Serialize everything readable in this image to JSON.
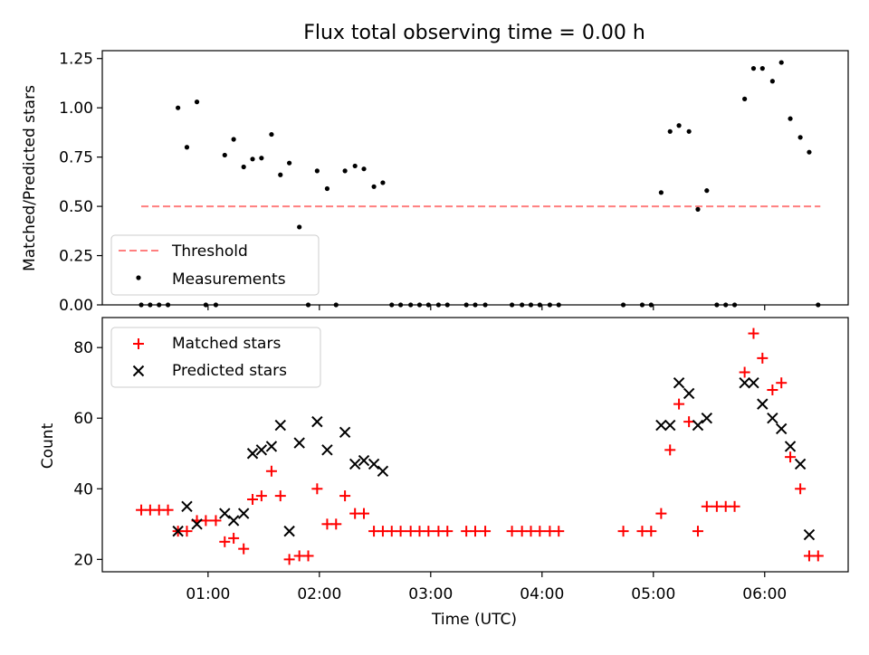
{
  "title": "Flux total observing time = 0.00 h",
  "chart_data": [
    {
      "type": "scatter",
      "ylabel": "Matched/Predicted stars",
      "xlabel": "",
      "xlim": [
        0.05,
        6.75
      ],
      "ylim": [
        0,
        1.29
      ],
      "yticks": [
        0,
        0.25,
        0.5,
        0.75,
        1.0,
        1.25
      ],
      "ytick_labels": [
        "0.00",
        "0.25",
        "0.50",
        "0.75",
        "1.00",
        "1.25"
      ],
      "xticks": [
        1,
        2,
        3,
        4,
        5,
        6
      ],
      "legend": {
        "location": "lower-left",
        "entries": [
          "Threshold",
          "Measurements"
        ]
      },
      "threshold": {
        "name": "Threshold",
        "value": 0.5,
        "x_range": [
          0.4,
          6.5
        ],
        "color": "#ff7f7f"
      },
      "measurements": {
        "name": "Measurements",
        "color": "#000000",
        "points": [
          [
            0.4,
            0
          ],
          [
            0.48,
            0
          ],
          [
            0.56,
            0
          ],
          [
            0.64,
            0
          ],
          [
            0.73,
            1.0
          ],
          [
            0.81,
            0.8
          ],
          [
            0.9,
            1.03
          ],
          [
            0.98,
            0
          ],
          [
            1.07,
            0
          ],
          [
            1.15,
            0.76
          ],
          [
            1.23,
            0.84
          ],
          [
            1.32,
            0.7
          ],
          [
            1.4,
            0.74
          ],
          [
            1.48,
            0.745
          ],
          [
            1.57,
            0.865
          ],
          [
            1.65,
            0.66
          ],
          [
            1.73,
            0.72
          ],
          [
            1.82,
            0.395
          ],
          [
            1.9,
            0
          ],
          [
            1.98,
            0.68
          ],
          [
            2.07,
            0.59
          ],
          [
            2.15,
            0
          ],
          [
            2.23,
            0.68
          ],
          [
            2.32,
            0.705
          ],
          [
            2.4,
            0.69
          ],
          [
            2.49,
            0.6
          ],
          [
            2.57,
            0.62
          ],
          [
            2.65,
            0
          ],
          [
            2.73,
            0
          ],
          [
            2.82,
            0
          ],
          [
            2.9,
            0
          ],
          [
            2.98,
            0
          ],
          [
            3.07,
            0
          ],
          [
            3.15,
            0
          ],
          [
            3.32,
            0
          ],
          [
            3.4,
            0
          ],
          [
            3.49,
            0
          ],
          [
            3.73,
            0
          ],
          [
            3.82,
            0
          ],
          [
            3.9,
            0
          ],
          [
            3.98,
            0
          ],
          [
            4.07,
            0
          ],
          [
            4.15,
            0
          ],
          [
            4.73,
            0
          ],
          [
            4.9,
            0
          ],
          [
            4.98,
            0
          ],
          [
            5.07,
            0.57
          ],
          [
            5.15,
            0.88
          ],
          [
            5.23,
            0.91
          ],
          [
            5.32,
            0.88
          ],
          [
            5.4,
            0.485
          ],
          [
            5.48,
            0.58
          ],
          [
            5.57,
            0
          ],
          [
            5.65,
            0
          ],
          [
            5.73,
            0
          ],
          [
            5.82,
            1.045
          ],
          [
            5.9,
            1.2
          ],
          [
            5.98,
            1.2
          ],
          [
            6.07,
            1.135
          ],
          [
            6.15,
            1.23
          ],
          [
            6.23,
            0.945
          ],
          [
            6.32,
            0.85
          ],
          [
            6.4,
            0.775
          ],
          [
            6.48,
            0
          ]
        ]
      }
    },
    {
      "type": "scatter",
      "ylabel": "Count",
      "xlabel": "Time (UTC)",
      "xlim": [
        0.05,
        6.75
      ],
      "ylim": [
        16.5,
        88.5
      ],
      "yticks": [
        20,
        40,
        60,
        80
      ],
      "ytick_labels": [
        "20",
        "40",
        "60",
        "80"
      ],
      "xticks": [
        1,
        2,
        3,
        4,
        5,
        6
      ],
      "xtick_labels": [
        "01:00",
        "02:00",
        "03:00",
        "04:00",
        "05:00",
        "06:00"
      ],
      "legend": {
        "location": "top-left",
        "entries": [
          "Matched stars",
          "Predicted stars"
        ]
      },
      "series": [
        {
          "name": "Matched stars",
          "marker": "plus",
          "color": "#ff0000",
          "points": [
            [
              0.4,
              34
            ],
            [
              0.48,
              34
            ],
            [
              0.56,
              34
            ],
            [
              0.64,
              34
            ],
            [
              0.73,
              28
            ],
            [
              0.81,
              28
            ],
            [
              0.9,
              31
            ],
            [
              0.98,
              31
            ],
            [
              1.07,
              31
            ],
            [
              1.15,
              25
            ],
            [
              1.23,
              26
            ],
            [
              1.32,
              23
            ],
            [
              1.4,
              37
            ],
            [
              1.48,
              38
            ],
            [
              1.57,
              45
            ],
            [
              1.65,
              38
            ],
            [
              1.73,
              20
            ],
            [
              1.82,
              21
            ],
            [
              1.9,
              21
            ],
            [
              1.98,
              40
            ],
            [
              2.07,
              30
            ],
            [
              2.15,
              30
            ],
            [
              2.23,
              38
            ],
            [
              2.32,
              33
            ],
            [
              2.4,
              33
            ],
            [
              2.49,
              28
            ],
            [
              2.57,
              28
            ],
            [
              2.65,
              28
            ],
            [
              2.73,
              28
            ],
            [
              2.82,
              28
            ],
            [
              2.9,
              28
            ],
            [
              2.98,
              28
            ],
            [
              3.07,
              28
            ],
            [
              3.15,
              28
            ],
            [
              3.32,
              28
            ],
            [
              3.4,
              28
            ],
            [
              3.49,
              28
            ],
            [
              3.73,
              28
            ],
            [
              3.82,
              28
            ],
            [
              3.9,
              28
            ],
            [
              3.98,
              28
            ],
            [
              4.07,
              28
            ],
            [
              4.15,
              28
            ],
            [
              4.73,
              28
            ],
            [
              4.9,
              28
            ],
            [
              4.98,
              28
            ],
            [
              5.07,
              33
            ],
            [
              5.15,
              51
            ],
            [
              5.23,
              64
            ],
            [
              5.32,
              59
            ],
            [
              5.4,
              28
            ],
            [
              5.48,
              35
            ],
            [
              5.57,
              35
            ],
            [
              5.65,
              35
            ],
            [
              5.73,
              35
            ],
            [
              5.82,
              73
            ],
            [
              5.9,
              84
            ],
            [
              5.98,
              77
            ],
            [
              6.07,
              68
            ],
            [
              6.15,
              70
            ],
            [
              6.23,
              49
            ],
            [
              6.32,
              40
            ],
            [
              6.4,
              21
            ],
            [
              6.48,
              21
            ]
          ]
        },
        {
          "name": "Predicted stars",
          "marker": "x",
          "color": "#000000",
          "points": [
            [
              0.73,
              28
            ],
            [
              0.81,
              35
            ],
            [
              0.9,
              30
            ],
            [
              1.15,
              33
            ],
            [
              1.23,
              31
            ],
            [
              1.32,
              33
            ],
            [
              1.4,
              50
            ],
            [
              1.48,
              51
            ],
            [
              1.57,
              52
            ],
            [
              1.65,
              58
            ],
            [
              1.73,
              28
            ],
            [
              1.82,
              53
            ],
            [
              1.98,
              59
            ],
            [
              2.07,
              51
            ],
            [
              2.23,
              56
            ],
            [
              2.32,
              47
            ],
            [
              2.4,
              48
            ],
            [
              2.49,
              47
            ],
            [
              2.57,
              45
            ],
            [
              5.07,
              58
            ],
            [
              5.15,
              58
            ],
            [
              5.23,
              70
            ],
            [
              5.32,
              67
            ],
            [
              5.4,
              58
            ],
            [
              5.48,
              60
            ],
            [
              5.82,
              70
            ],
            [
              5.9,
              70
            ],
            [
              5.98,
              64
            ],
            [
              6.07,
              60
            ],
            [
              6.15,
              57
            ],
            [
              6.23,
              52
            ],
            [
              6.32,
              47
            ],
            [
              6.4,
              27
            ]
          ]
        }
      ]
    }
  ]
}
